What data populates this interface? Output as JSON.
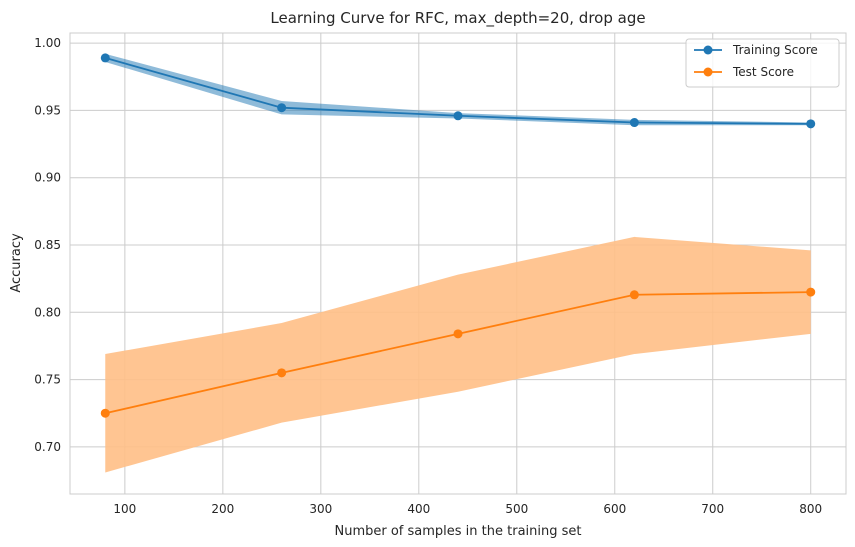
{
  "chart_data": {
    "type": "line",
    "title": "Learning Curve for RFC, max_depth=20, drop age",
    "xlabel": "Number of samples in the training set",
    "ylabel": "Accuracy",
    "xlim": [
      44,
      836
    ],
    "ylim": [
      0.665,
      1.0075
    ],
    "xticks": [
      100,
      200,
      300,
      400,
      500,
      600,
      700,
      800
    ],
    "yticks": [
      0.7,
      0.75,
      0.8,
      0.85,
      0.9,
      0.95,
      1.0
    ],
    "xtick_labels": [
      "100",
      "200",
      "300",
      "400",
      "500",
      "600",
      "700",
      "800"
    ],
    "ytick_labels": [
      "0.70",
      "0.75",
      "0.80",
      "0.85",
      "0.90",
      "0.95",
      "1.00"
    ],
    "grid": true,
    "legend_position": "top-right",
    "x": [
      80,
      260,
      440,
      620,
      800
    ],
    "series": [
      {
        "name": "Training Score",
        "color": "#1f77b4",
        "band_color": "#1f77b4",
        "values": [
          0.989,
          0.952,
          0.946,
          0.941,
          0.94
        ],
        "upper": [
          0.992,
          0.957,
          0.948,
          0.943,
          0.941
        ],
        "lower": [
          0.986,
          0.947,
          0.944,
          0.939,
          0.939
        ]
      },
      {
        "name": "Test Score",
        "color": "#ff7f0e",
        "band_color": "#ffbf86",
        "values": [
          0.725,
          0.755,
          0.784,
          0.813,
          0.815
        ],
        "upper": [
          0.769,
          0.792,
          0.828,
          0.856,
          0.846
        ],
        "lower": [
          0.681,
          0.718,
          0.741,
          0.769,
          0.784
        ]
      }
    ]
  }
}
